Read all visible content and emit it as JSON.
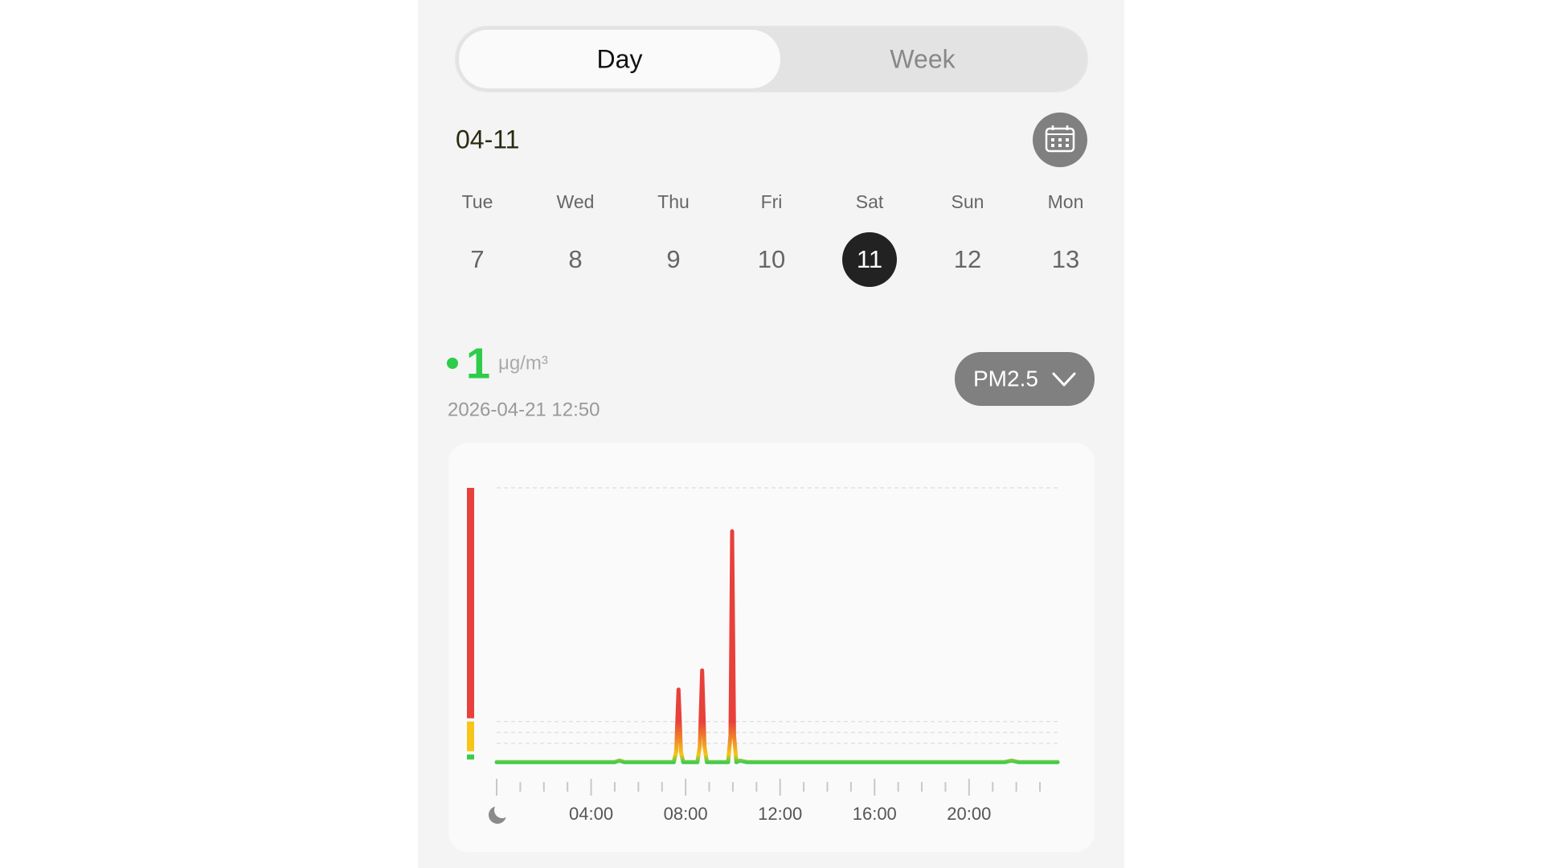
{
  "tabs": [
    "Day",
    "Week"
  ],
  "selected_tab": 0,
  "date": "04-11",
  "week": {
    "days": [
      "Tue",
      "Wed",
      "Thu",
      "Fri",
      "Sat",
      "Sun",
      "Mon"
    ],
    "dates": [
      "7",
      "8",
      "9",
      "10",
      "11",
      "12",
      "13"
    ],
    "selected": 4
  },
  "reading": {
    "value": "1",
    "unit": "μg/m³",
    "timestamp": "2026-04-21 12:50"
  },
  "pollutant": "PM2.5",
  "chart_data": {
    "type": "line",
    "x": [
      0,
      2.5,
      5,
      5.2,
      5.4,
      7.5,
      7.6,
      7.7,
      7.8,
      7.9,
      8.5,
      8.6,
      8.7,
      8.8,
      8.9,
      9.8,
      9.9,
      9.97,
      10.05,
      10.15,
      10.3,
      10.6,
      21.5,
      21.8,
      22.1,
      23.75
    ],
    "values": [
      1,
      1,
      1,
      4,
      1,
      1,
      20,
      133,
      20,
      1,
      1,
      30,
      168,
      30,
      1,
      1,
      50,
      421,
      50,
      1,
      4,
      1,
      1,
      4,
      1,
      1
    ],
    "xlim": [
      0,
      24
    ],
    "xticks": [
      {
        "value": 4,
        "label": "04:00"
      },
      {
        "value": 8,
        "label": "08:00"
      },
      {
        "value": 12,
        "label": "12:00"
      },
      {
        "value": 16,
        "label": "16:00"
      },
      {
        "value": 20,
        "label": "20:00"
      }
    ],
    "xticks_minor": [
      0,
      1,
      2,
      3,
      4,
      5,
      6,
      7,
      8,
      9,
      10,
      11,
      12,
      13,
      14,
      15,
      16,
      17,
      18,
      19,
      20,
      21,
      22,
      23
    ],
    "ylim": [
      0,
      500
    ],
    "grid_values": [
      35,
      55,
      75,
      500
    ],
    "levels": [
      {
        "max": 15,
        "color": "#3ccc4c"
      },
      {
        "max": 75,
        "color": "#f5c518"
      },
      {
        "max": 500,
        "color": "#e8403a"
      }
    ]
  }
}
